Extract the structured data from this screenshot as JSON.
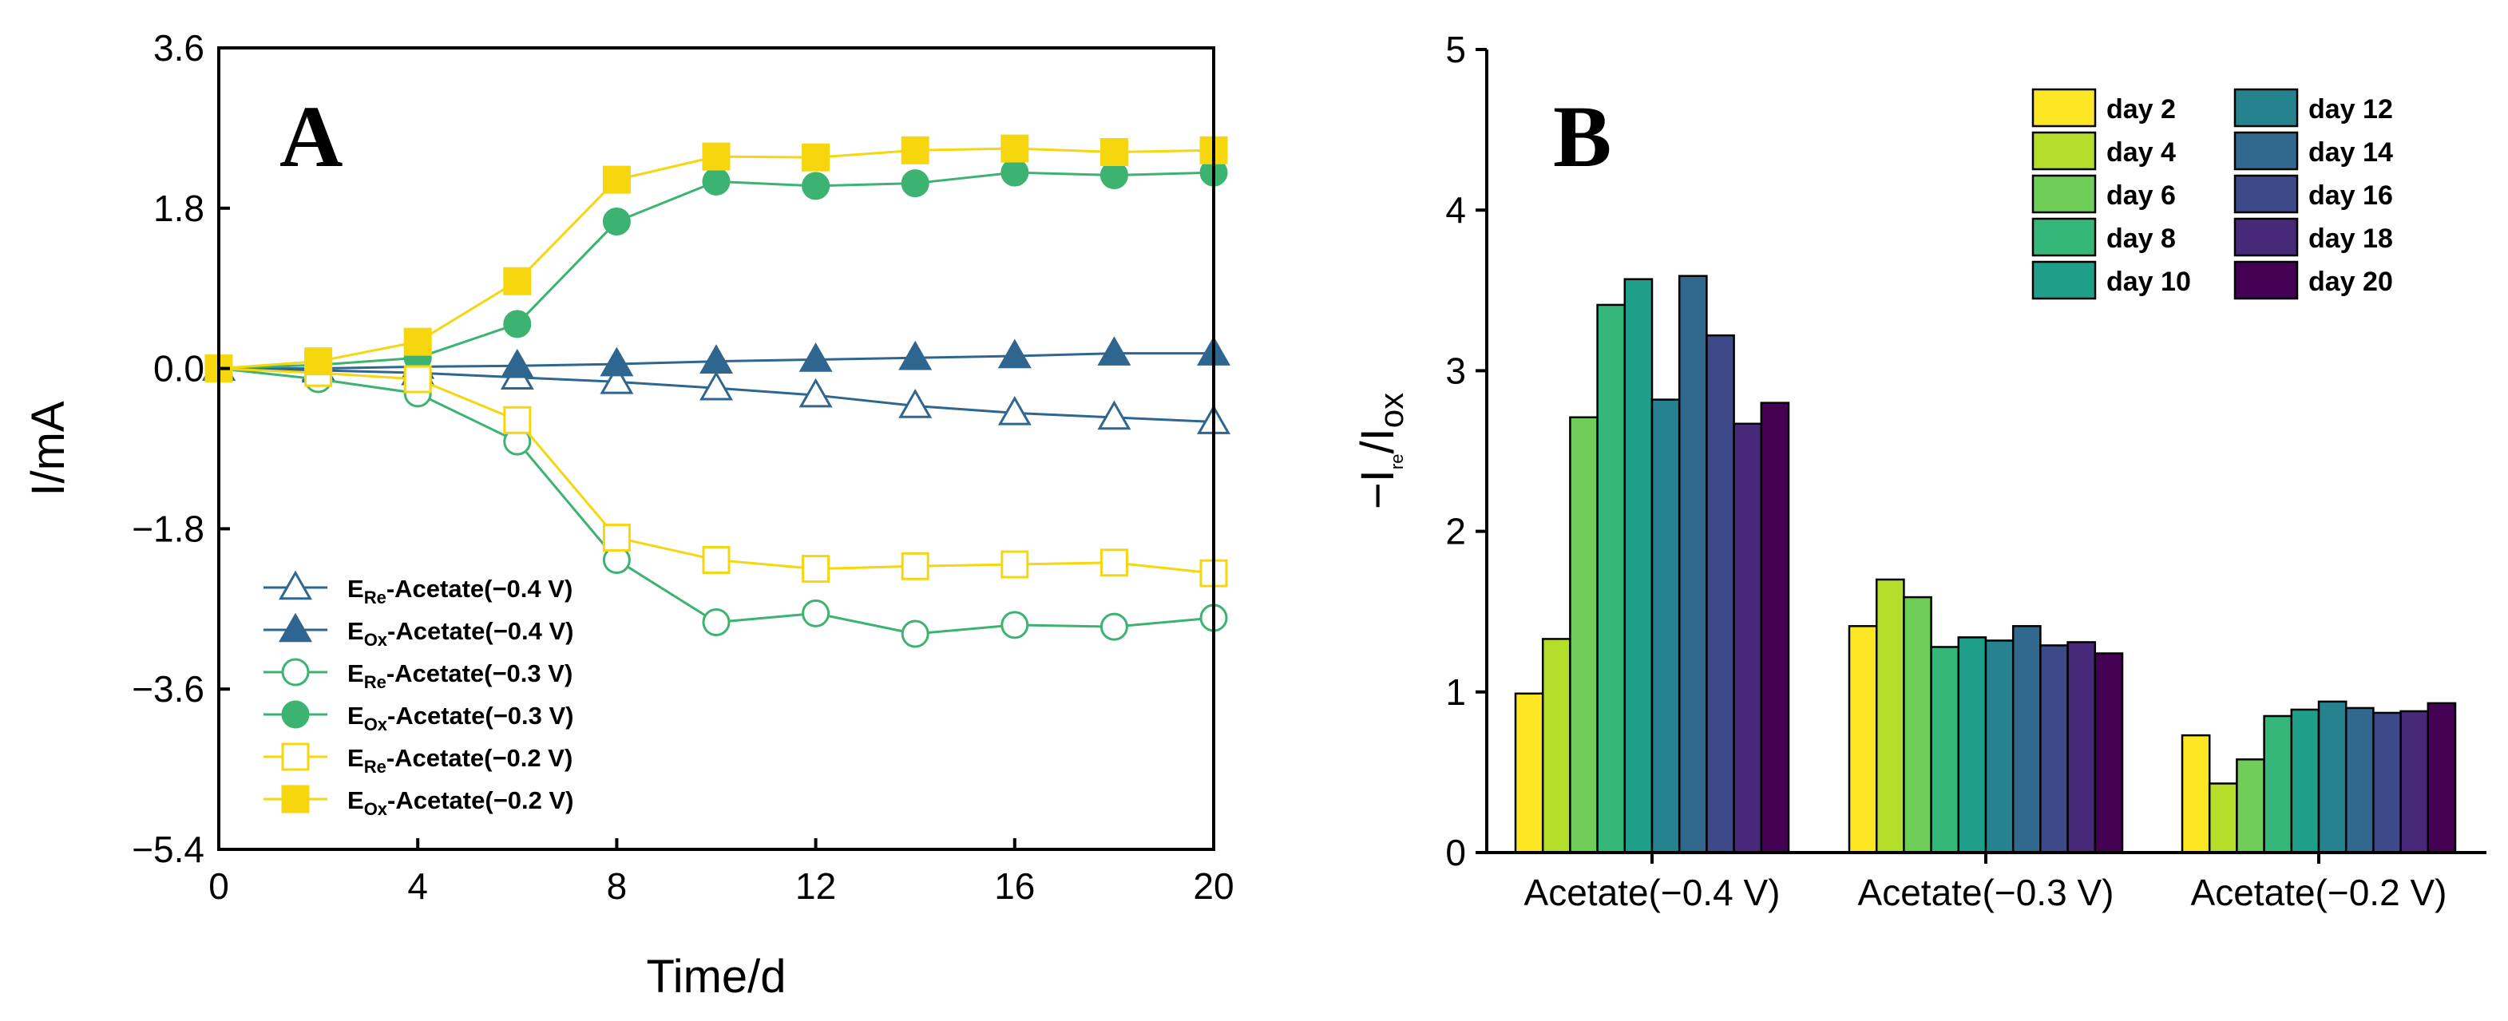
{
  "chart_data": [
    {
      "panel": "A",
      "type": "line",
      "xlabel": "Time/d",
      "ylabel": "I/mA",
      "xlim": [
        0,
        20
      ],
      "ylim": [
        -5.4,
        3.6
      ],
      "xticks": [
        "0",
        "4",
        "8",
        "12",
        "16",
        "20"
      ],
      "yticks": [
        "3.6",
        "1.8",
        "0.0",
        "−1.8",
        "−3.6",
        "−5.4"
      ],
      "x": [
        0,
        2,
        4,
        6,
        8,
        10,
        12,
        14,
        16,
        18,
        20
      ],
      "series": [
        {
          "name_main": "E",
          "name_sub": "Re",
          "name_rest": "-Acetate(−0.4 V)",
          "color": "#2f6690",
          "marker": "triangle",
          "filled": false,
          "values": [
            0,
            -0.02,
            -0.05,
            -0.1,
            -0.15,
            -0.22,
            -0.3,
            -0.42,
            -0.5,
            -0.55,
            -0.6
          ]
        },
        {
          "name_main": "E",
          "name_sub": "Ox",
          "name_rest": "-Acetate(−0.4 V)",
          "color": "#2f6690",
          "marker": "triangle",
          "filled": true,
          "values": [
            0,
            0.0,
            0.02,
            0.03,
            0.05,
            0.08,
            0.1,
            0.12,
            0.14,
            0.17,
            0.17
          ]
        },
        {
          "name_main": "E",
          "name_sub": "Re",
          "name_rest": "-Acetate(−0.3 V)",
          "color": "#3cb371",
          "marker": "circle",
          "filled": false,
          "values": [
            0,
            -0.12,
            -0.28,
            -0.82,
            -2.15,
            -2.85,
            -2.75,
            -2.98,
            -2.88,
            -2.9,
            -2.8
          ]
        },
        {
          "name_main": "E",
          "name_sub": "Ox",
          "name_rest": "-Acetate(−0.3 V)",
          "color": "#3cb371",
          "marker": "circle",
          "filled": true,
          "values": [
            0,
            0.04,
            0.12,
            0.5,
            1.65,
            2.1,
            2.05,
            2.08,
            2.2,
            2.17,
            2.2
          ]
        },
        {
          "name_main": "E",
          "name_sub": "Re",
          "name_rest": "-Acetate(−0.2 V)",
          "color": "#f5d60f",
          "marker": "square",
          "filled": false,
          "values": [
            0,
            -0.05,
            -0.12,
            -0.58,
            -1.9,
            -2.15,
            -2.25,
            -2.22,
            -2.2,
            -2.18,
            -2.3
          ]
        },
        {
          "name_main": "E",
          "name_sub": "Ox",
          "name_rest": "-Acetate(−0.2 V)",
          "color": "#f5d60f",
          "marker": "square",
          "filled": true,
          "values": [
            0,
            0.08,
            0.3,
            0.98,
            2.12,
            2.38,
            2.37,
            2.45,
            2.47,
            2.43,
            2.45
          ]
        }
      ],
      "legend": "bottom-left"
    },
    {
      "panel": "B",
      "type": "bar",
      "ylabel_main": "−I",
      "ylabel_sub1": "re",
      "ylabel_mid": "/I",
      "ylabel_sub2": "ox",
      "ylim": [
        0,
        5
      ],
      "yticks": [
        "0",
        "1",
        "2",
        "3",
        "4",
        "5"
      ],
      "categories": [
        "Acetate(−0.4 V)",
        "Acetate(−0.3 V)",
        "Acetate(−0.2 V)"
      ],
      "series": [
        {
          "name": "day 2",
          "color": "#fde725",
          "values": [
            0.99,
            1.41,
            0.73
          ]
        },
        {
          "name": "day 4",
          "color": "#b5de2b",
          "values": [
            1.33,
            1.7,
            0.43
          ]
        },
        {
          "name": "day 6",
          "color": "#6ece58",
          "values": [
            2.71,
            1.59,
            0.58
          ]
        },
        {
          "name": "day 8",
          "color": "#35b779",
          "values": [
            3.41,
            1.28,
            0.85
          ]
        },
        {
          "name": "day 10",
          "color": "#1f9e89",
          "values": [
            3.57,
            1.34,
            0.89
          ]
        },
        {
          "name": "day 12",
          "color": "#26828e",
          "values": [
            2.82,
            1.32,
            0.94
          ]
        },
        {
          "name": "day 14",
          "color": "#31688e",
          "values": [
            3.59,
            1.41,
            0.9
          ]
        },
        {
          "name": "day 16",
          "color": "#3e4989",
          "values": [
            3.22,
            1.29,
            0.87
          ]
        },
        {
          "name": "day 18",
          "color": "#482878",
          "values": [
            2.67,
            1.31,
            0.88
          ]
        },
        {
          "name": "day 20",
          "color": "#440154",
          "values": [
            2.8,
            1.24,
            0.93
          ]
        }
      ],
      "legend": "top-right"
    }
  ]
}
